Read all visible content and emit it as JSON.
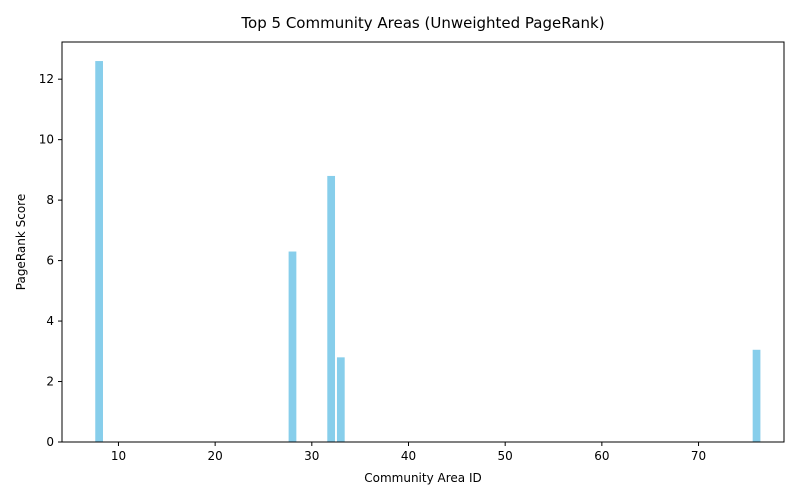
{
  "chart_data": {
    "type": "bar",
    "title": "Top 5 Community Areas (Unweighted PageRank)",
    "xlabel": "Community Area ID",
    "ylabel": "PageRank Score",
    "x": [
      8,
      28,
      32,
      33,
      76
    ],
    "values": [
      12.6,
      6.3,
      8.8,
      2.8,
      3.05
    ],
    "bar_width": 0.8,
    "bar_color": "#87CEEB",
    "xlim": [
      4.16,
      78.84
    ],
    "ylim": [
      0,
      13.23
    ],
    "xticks": [
      10,
      20,
      30,
      40,
      50,
      60,
      70
    ],
    "yticks": [
      0,
      2,
      4,
      6,
      8,
      10,
      12
    ],
    "grid": false
  }
}
